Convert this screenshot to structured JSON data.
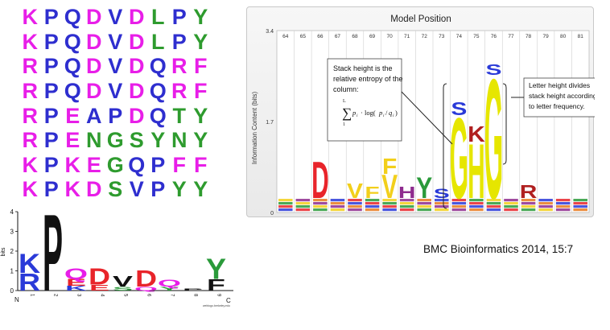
{
  "alignment": {
    "sequences": [
      "KPQDVDLPY",
      "KPQDVDLPY",
      "RPQDVDQRF",
      "RPQDVDQRF",
      "RPEAPDQTY",
      "RPENGSYNY",
      "KPKEGQPFF",
      "KPKDSVPYY"
    ],
    "colors": {
      "K": "#e81ee8",
      "R": "#e81ee8",
      "P": "#2e2ecf",
      "Q": "#2e2ecf",
      "E": "#e81ee8",
      "D": "#e81ee8",
      "A": "#2e2ecf",
      "G": "#2e9b2e",
      "N": "#2e9b2e",
      "S": "#2e9b2e",
      "V": "#2e2ecf",
      "L": "#2e9b2e",
      "Y": "#2e9b2e",
      "F": "#e81ee8",
      "T": "#2e9b2e"
    }
  },
  "model_logo": {
    "title": "Model Position",
    "ylabel": "Information Content (bits)",
    "yticks": [
      "3.4",
      "1.7",
      "0"
    ],
    "positions": [
      "64",
      "65",
      "66",
      "67",
      "68",
      "69",
      "70",
      "71",
      "72",
      "73",
      "74",
      "75",
      "76",
      "77",
      "78",
      "79",
      "80",
      "81"
    ],
    "letters": [
      {
        "pos": "66",
        "char": "D",
        "color": "#e8242a",
        "height": 0.7
      },
      {
        "pos": "68",
        "char": "V",
        "color": "#f2cf1b",
        "height": 0.28
      },
      {
        "pos": "69",
        "char": "F",
        "color": "#f2cf1b",
        "height": 0.22
      },
      {
        "pos": "70",
        "char": "V",
        "color": "#f2cf1b",
        "height": 0.45
      },
      {
        "pos": "70",
        "char": "F",
        "color": "#f2cf1b",
        "height": 0.3
      },
      {
        "pos": "71",
        "char": "H",
        "color": "#8e2b8e",
        "height": 0.22
      },
      {
        "pos": "72",
        "char": "Y",
        "color": "#2a9a3a",
        "height": 0.4
      },
      {
        "pos": "73",
        "char": "S",
        "color": "#2a3ad8",
        "height": 0.18
      },
      {
        "pos": "74",
        "char": "G",
        "color": "#e6e600",
        "height": 1.55
      },
      {
        "pos": "74",
        "char": "S",
        "color": "#2a3ad8",
        "height": 0.25
      },
      {
        "pos": "75",
        "char": "H",
        "color": "#e6e600",
        "height": 1.05
      },
      {
        "pos": "75",
        "char": "K",
        "color": "#b02020",
        "height": 0.3
      },
      {
        "pos": "76",
        "char": "G",
        "color": "#e6e600",
        "height": 2.3
      },
      {
        "pos": "76",
        "char": "S",
        "color": "#2a3ad8",
        "height": 0.2
      },
      {
        "pos": "78",
        "char": "R",
        "color": "#b02020",
        "height": 0.25
      }
    ],
    "callout_left": {
      "lines": [
        "Stack height is the",
        "relative entropy of the",
        "column:"
      ]
    },
    "callout_right": {
      "lines": [
        "Letter height divides",
        "stack height according",
        "to letter frequency."
      ]
    }
  },
  "citation": "BMC Bioinformatics 2014, 15:7",
  "small_logo": {
    "yticks": [
      "4",
      "3",
      "2",
      "1",
      "0"
    ],
    "ylabel": "bits",
    "n_label": "N",
    "c_label": "C",
    "stacks": [
      {
        "pos": "1",
        "letters": [
          {
            "char": "R",
            "color": "#2a3ad8",
            "h": 0.9
          },
          {
            "char": "K",
            "color": "#2a3ad8",
            "h": 1.0
          }
        ]
      },
      {
        "pos": "2",
        "letters": [
          {
            "char": "P",
            "color": "#111111",
            "h": 4.0
          }
        ]
      },
      {
        "pos": "3",
        "letters": [
          {
            "char": "K",
            "color": "#2a3ad8",
            "h": 0.25
          },
          {
            "char": "E",
            "color": "#e8242a",
            "h": 0.35
          },
          {
            "char": "Q",
            "color": "#e81ee8",
            "h": 0.55
          }
        ]
      },
      {
        "pos": "4",
        "letters": [
          {
            "char": "E",
            "color": "#e8242a",
            "h": 0.3
          },
          {
            "char": "D",
            "color": "#e8242a",
            "h": 0.85
          }
        ]
      },
      {
        "pos": "5",
        "letters": [
          {
            "char": "S",
            "color": "#2a9a3a",
            "h": 0.2
          },
          {
            "char": "V",
            "color": "#111111",
            "h": 0.55
          }
        ]
      },
      {
        "pos": "6",
        "letters": [
          {
            "char": "Q",
            "color": "#e81ee8",
            "h": 0.2
          },
          {
            "char": "D",
            "color": "#e8242a",
            "h": 0.85
          }
        ]
      },
      {
        "pos": "7",
        "letters": [
          {
            "char": "Y",
            "color": "#2a9a3a",
            "h": 0.2
          },
          {
            "char": "Q",
            "color": "#e81ee8",
            "h": 0.35
          }
        ]
      },
      {
        "pos": "8",
        "letters": [
          {
            "char": "P",
            "color": "#111111",
            "h": 0.1
          }
        ]
      },
      {
        "pos": "9",
        "letters": [
          {
            "char": "F",
            "color": "#111111",
            "h": 0.6
          },
          {
            "char": "Y",
            "color": "#2a9a3a",
            "h": 1.05
          }
        ]
      }
    ],
    "credit": "weblogo.berkeley.edu"
  }
}
